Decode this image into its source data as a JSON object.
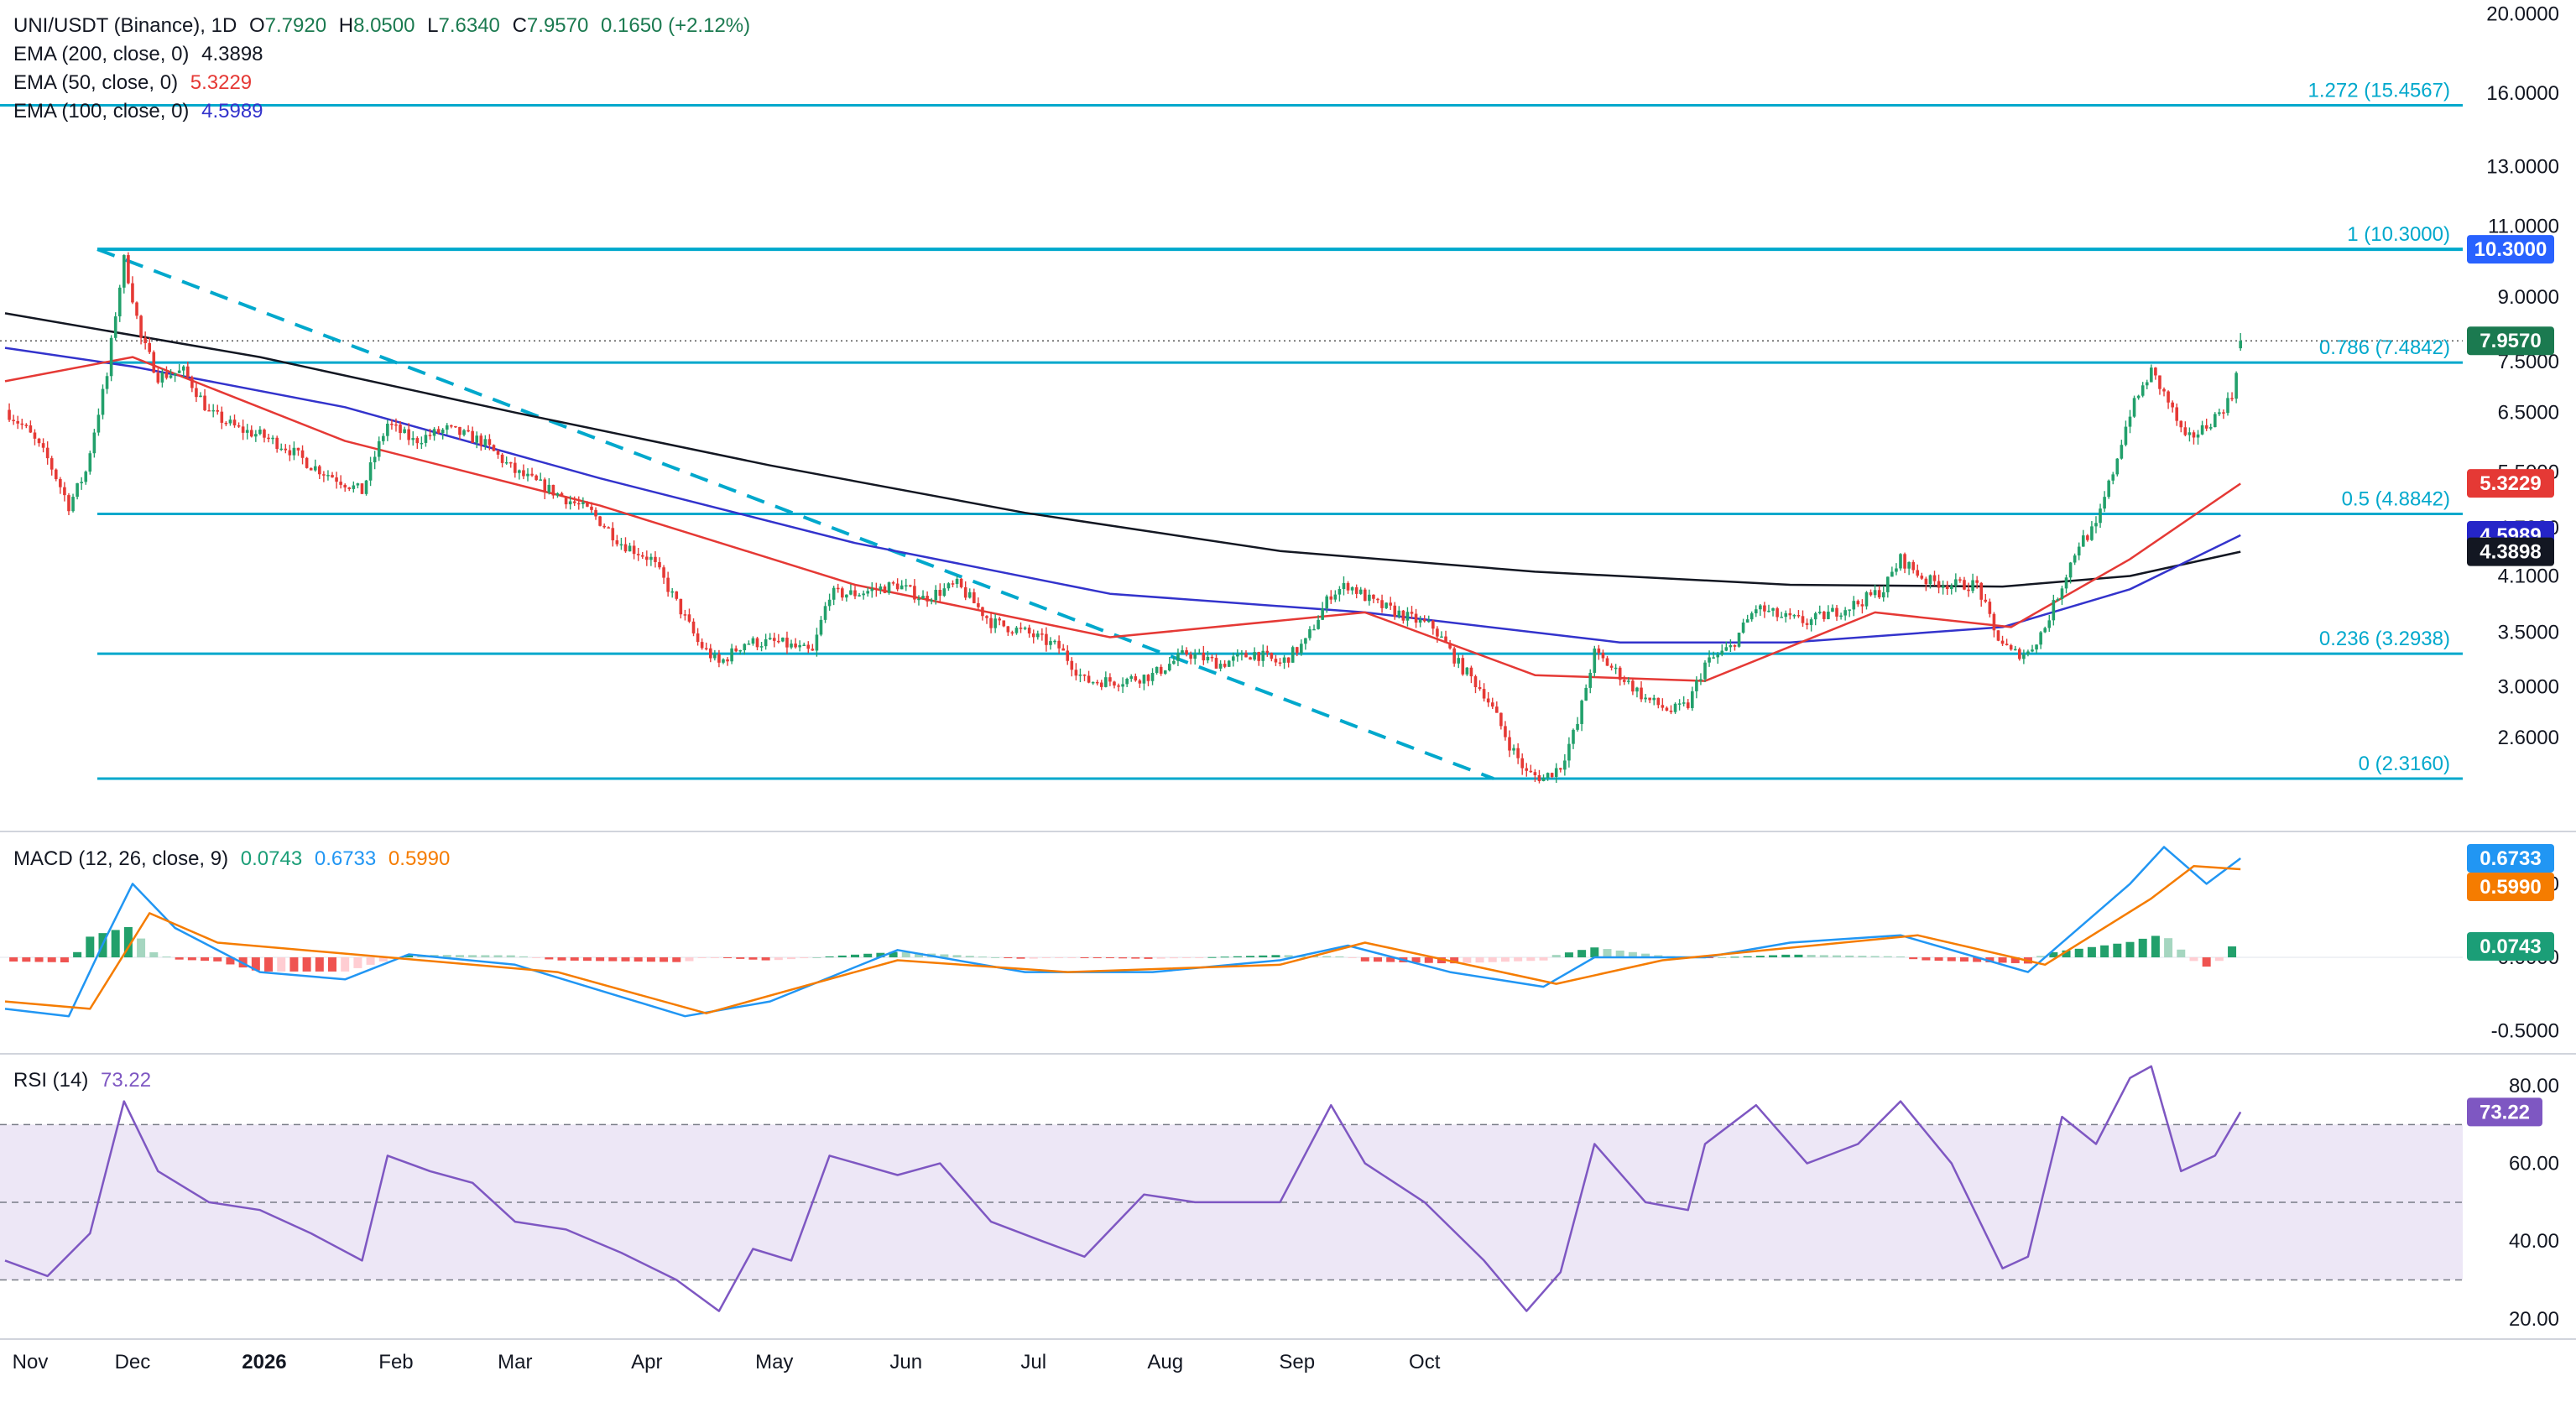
{
  "colors": {
    "up": "#22a06b",
    "down": "#e53935",
    "ema200": "#131722",
    "ema50": "#e53935",
    "ema100": "#3333cc",
    "fib": "#00a8cc",
    "macd": "#2196f3",
    "signal": "#f57c00",
    "rsi": "#7e57c2",
    "rsiBand": "#ede7f6"
  },
  "legend": {
    "symbol": "UNI/USDT (Binance), 1D",
    "o_label": "O",
    "o": "7.7920",
    "h_label": "H",
    "h": "8.0500",
    "l_label": "L",
    "l": "7.6340",
    "c_label": "C",
    "c": "7.9570",
    "chg": "0.1650 (+2.12%)",
    "ema200_label": "EMA (200, close, 0)",
    "ema200_val": "4.3898",
    "ema50_label": "EMA (50, close, 0)",
    "ema50_val": "5.3229",
    "ema100_label": "EMA (100, close, 0)",
    "ema100_val": "4.5989",
    "macd_label": "MACD (12, 26, close, 9)",
    "macd_hist": "0.0743",
    "macd_line": "0.6733",
    "macd_signal": "0.5990",
    "rsi_label": "RSI (14)",
    "rsi_val": "73.22"
  },
  "chart_data": {
    "type": "candlestick",
    "scale": "log",
    "price_axis_ticks": [
      "20.0000",
      "16.0000",
      "13.0000",
      "11.0000",
      "9.0000",
      "7.5000",
      "6.5000",
      "5.5000",
      "4.7000",
      "4.1000",
      "3.5000",
      "3.0000",
      "2.6000"
    ],
    "x_tick_labels": [
      "Nov",
      "Dec",
      "2026",
      "Feb",
      "Mar",
      "Apr",
      "May",
      "Jun",
      "Jul",
      "Aug",
      "Sep",
      "Oct"
    ],
    "fib_levels": [
      {
        "label": "1.272 (15.4567)",
        "value": 15.4567
      },
      {
        "label": "1 (10.3000)",
        "value": 10.3
      },
      {
        "label": "0.786 (7.4842)",
        "value": 7.4842
      },
      {
        "label": "0.5 (4.8842)",
        "value": 4.8842
      },
      {
        "label": "0.236 (3.2938)",
        "value": 3.2938
      },
      {
        "label": "0 (2.3160)",
        "value": 2.316
      }
    ],
    "trendline": {
      "from": {
        "date": "Nov 9",
        "value": 10.3
      },
      "to": {
        "date": "Jun 9",
        "value": 2.316
      }
    },
    "price_badges": [
      {
        "text": "10.3000",
        "value": 10.3,
        "color": "#2962ff"
      },
      {
        "text": "7.9570",
        "value": 7.957,
        "color": "#1b7a50"
      },
      {
        "text": "5.3229",
        "value": 5.3229,
        "color": "#e53935"
      },
      {
        "text": "4.5989",
        "value": 4.5989,
        "color": "#2525c8"
      },
      {
        "text": "4.3898",
        "value": 4.3898,
        "color": "#131722"
      }
    ],
    "price_path": [
      {
        "day": 0,
        "value": 6.55
      },
      {
        "day": 5,
        "value": 6.2
      },
      {
        "day": 10,
        "value": 5.7
      },
      {
        "day": 15,
        "value": 5.0
      },
      {
        "day": 19,
        "value": 5.5
      },
      {
        "day": 24,
        "value": 7.2
      },
      {
        "day": 28,
        "value": 10.0
      },
      {
        "day": 32,
        "value": 8.0
      },
      {
        "day": 36,
        "value": 7.2
      },
      {
        "day": 42,
        "value": 7.3
      },
      {
        "day": 48,
        "value": 6.5
      },
      {
        "day": 55,
        "value": 6.2
      },
      {
        "day": 60,
        "value": 6.1
      },
      {
        "day": 66,
        "value": 5.9
      },
      {
        "day": 72,
        "value": 5.6
      },
      {
        "day": 78,
        "value": 5.4
      },
      {
        "day": 84,
        "value": 5.2
      },
      {
        "day": 90,
        "value": 6.3
      },
      {
        "day": 96,
        "value": 6.0
      },
      {
        "day": 104,
        "value": 6.2
      },
      {
        "day": 112,
        "value": 6.0
      },
      {
        "day": 120,
        "value": 5.5
      },
      {
        "day": 126,
        "value": 5.3
      },
      {
        "day": 132,
        "value": 5.1
      },
      {
        "day": 138,
        "value": 4.9
      },
      {
        "day": 145,
        "value": 4.5
      },
      {
        "day": 152,
        "value": 4.3
      },
      {
        "day": 158,
        "value": 3.8
      },
      {
        "day": 163,
        "value": 3.4
      },
      {
        "day": 168,
        "value": 3.2
      },
      {
        "day": 174,
        "value": 3.4
      },
      {
        "day": 182,
        "value": 3.4
      },
      {
        "day": 190,
        "value": 3.3
      },
      {
        "day": 194,
        "value": 3.9
      },
      {
        "day": 200,
        "value": 3.9
      },
      {
        "day": 210,
        "value": 4.0
      },
      {
        "day": 216,
        "value": 3.85
      },
      {
        "day": 224,
        "value": 4.0
      },
      {
        "day": 232,
        "value": 3.6
      },
      {
        "day": 240,
        "value": 3.5
      },
      {
        "day": 248,
        "value": 3.35
      },
      {
        "day": 254,
        "value": 3.05
      },
      {
        "day": 262,
        "value": 3.05
      },
      {
        "day": 270,
        "value": 3.1
      },
      {
        "day": 278,
        "value": 3.3
      },
      {
        "day": 286,
        "value": 3.2
      },
      {
        "day": 294,
        "value": 3.3
      },
      {
        "day": 300,
        "value": 3.2
      },
      {
        "day": 306,
        "value": 3.4
      },
      {
        "day": 312,
        "value": 3.9
      },
      {
        "day": 316,
        "value": 4.0
      },
      {
        "day": 322,
        "value": 3.8
      },
      {
        "day": 330,
        "value": 3.65
      },
      {
        "day": 336,
        "value": 3.55
      },
      {
        "day": 342,
        "value": 3.2
      },
      {
        "day": 348,
        "value": 2.95
      },
      {
        "day": 354,
        "value": 2.55
      },
      {
        "day": 358,
        "value": 2.35
      },
      {
        "day": 362,
        "value": 2.32
      },
      {
        "day": 366,
        "value": 2.4
      },
      {
        "day": 370,
        "value": 2.7
      },
      {
        "day": 374,
        "value": 3.3
      },
      {
        "day": 380,
        "value": 3.1
      },
      {
        "day": 386,
        "value": 2.9
      },
      {
        "day": 392,
        "value": 2.8
      },
      {
        "day": 396,
        "value": 2.85
      },
      {
        "day": 400,
        "value": 3.2
      },
      {
        "day": 406,
        "value": 3.35
      },
      {
        "day": 412,
        "value": 3.75
      },
      {
        "day": 418,
        "value": 3.65
      },
      {
        "day": 424,
        "value": 3.6
      },
      {
        "day": 430,
        "value": 3.7
      },
      {
        "day": 436,
        "value": 3.8
      },
      {
        "day": 442,
        "value": 3.95
      },
      {
        "day": 446,
        "value": 4.3
      },
      {
        "day": 452,
        "value": 4.05
      },
      {
        "day": 458,
        "value": 4.0
      },
      {
        "day": 464,
        "value": 4.0
      },
      {
        "day": 468,
        "value": 3.5
      },
      {
        "day": 472,
        "value": 3.3
      },
      {
        "day": 476,
        "value": 3.3
      },
      {
        "day": 480,
        "value": 3.55
      },
      {
        "day": 484,
        "value": 4.0
      },
      {
        "day": 488,
        "value": 4.5
      },
      {
        "day": 492,
        "value": 4.7
      },
      {
        "day": 496,
        "value": 5.5
      },
      {
        "day": 500,
        "value": 6.5
      },
      {
        "day": 505,
        "value": 7.3
      },
      {
        "day": 509,
        "value": 6.7
      },
      {
        "day": 513,
        "value": 6.0
      },
      {
        "day": 517,
        "value": 6.2
      },
      {
        "day": 521,
        "value": 6.5
      },
      {
        "day": 524,
        "value": 6.8
      },
      {
        "day": 526,
        "value": 7.95
      }
    ],
    "ema200": [
      {
        "day": 0,
        "value": 8.6
      },
      {
        "day": 60,
        "value": 7.6
      },
      {
        "day": 120,
        "value": 6.5
      },
      {
        "day": 180,
        "value": 5.6
      },
      {
        "day": 240,
        "value": 4.9
      },
      {
        "day": 300,
        "value": 4.4
      },
      {
        "day": 360,
        "value": 4.15
      },
      {
        "day": 420,
        "value": 4.0
      },
      {
        "day": 470,
        "value": 3.98
      },
      {
        "day": 500,
        "value": 4.1
      },
      {
        "day": 526,
        "value": 4.39
      }
    ],
    "ema100": [
      {
        "day": 0,
        "value": 7.8
      },
      {
        "day": 30,
        "value": 7.4
      },
      {
        "day": 80,
        "value": 6.6
      },
      {
        "day": 140,
        "value": 5.4
      },
      {
        "day": 200,
        "value": 4.5
      },
      {
        "day": 260,
        "value": 3.9
      },
      {
        "day": 320,
        "value": 3.7
      },
      {
        "day": 380,
        "value": 3.4
      },
      {
        "day": 420,
        "value": 3.4
      },
      {
        "day": 470,
        "value": 3.55
      },
      {
        "day": 500,
        "value": 3.95
      },
      {
        "day": 526,
        "value": 4.6
      }
    ],
    "ema50": [
      {
        "day": 0,
        "value": 7.1
      },
      {
        "day": 30,
        "value": 7.6
      },
      {
        "day": 80,
        "value": 6.0
      },
      {
        "day": 140,
        "value": 5.0
      },
      {
        "day": 200,
        "value": 4.0
      },
      {
        "day": 260,
        "value": 3.45
      },
      {
        "day": 320,
        "value": 3.7
      },
      {
        "day": 360,
        "value": 3.1
      },
      {
        "day": 400,
        "value": 3.05
      },
      {
        "day": 440,
        "value": 3.7
      },
      {
        "day": 472,
        "value": 3.55
      },
      {
        "day": 500,
        "value": 4.3
      },
      {
        "day": 526,
        "value": 5.32
      }
    ],
    "macd": {
      "axis_ticks": [
        "0.5000",
        "0.0000",
        "-0.5000"
      ],
      "ylim": [
        -0.65,
        0.85
      ],
      "macd": [
        {
          "day": 0,
          "value": -0.35
        },
        {
          "day": 15,
          "value": -0.4
        },
        {
          "day": 24,
          "value": 0.15
        },
        {
          "day": 30,
          "value": 0.5
        },
        {
          "day": 40,
          "value": 0.2
        },
        {
          "day": 60,
          "value": -0.1
        },
        {
          "day": 80,
          "value": -0.15
        },
        {
          "day": 95,
          "value": 0.02
        },
        {
          "day": 120,
          "value": -0.05
        },
        {
          "day": 160,
          "value": -0.4
        },
        {
          "day": 180,
          "value": -0.3
        },
        {
          "day": 210,
          "value": 0.05
        },
        {
          "day": 240,
          "value": -0.1
        },
        {
          "day": 270,
          "value": -0.1
        },
        {
          "day": 300,
          "value": -0.02
        },
        {
          "day": 316,
          "value": 0.08
        },
        {
          "day": 340,
          "value": -0.1
        },
        {
          "day": 362,
          "value": -0.2
        },
        {
          "day": 374,
          "value": 0.0
        },
        {
          "day": 400,
          "value": 0.0
        },
        {
          "day": 420,
          "value": 0.1
        },
        {
          "day": 446,
          "value": 0.15
        },
        {
          "day": 476,
          "value": -0.1
        },
        {
          "day": 500,
          "value": 0.5
        },
        {
          "day": 508,
          "value": 0.75
        },
        {
          "day": 518,
          "value": 0.5
        },
        {
          "day": 526,
          "value": 0.6733
        }
      ],
      "signal": [
        {
          "day": 0,
          "value": -0.3
        },
        {
          "day": 20,
          "value": -0.35
        },
        {
          "day": 34,
          "value": 0.3
        },
        {
          "day": 50,
          "value": 0.1
        },
        {
          "day": 90,
          "value": 0.0
        },
        {
          "day": 130,
          "value": -0.1
        },
        {
          "day": 165,
          "value": -0.38
        },
        {
          "day": 210,
          "value": -0.02
        },
        {
          "day": 250,
          "value": -0.1
        },
        {
          "day": 300,
          "value": -0.05
        },
        {
          "day": 320,
          "value": 0.1
        },
        {
          "day": 365,
          "value": -0.18
        },
        {
          "day": 390,
          "value": -0.02
        },
        {
          "day": 450,
          "value": 0.15
        },
        {
          "day": 480,
          "value": -0.05
        },
        {
          "day": 505,
          "value": 0.4
        },
        {
          "day": 515,
          "value": 0.62
        },
        {
          "day": 526,
          "value": 0.599
        }
      ],
      "hist_last": 0.0743
    },
    "rsi": {
      "axis_ticks": [
        "80.00",
        "60.00",
        "40.00",
        "20.00"
      ],
      "ylim": [
        15,
        88
      ],
      "band": [
        30,
        70
      ],
      "mid": 50,
      "values": [
        {
          "day": 0,
          "value": 35
        },
        {
          "day": 10,
          "value": 31
        },
        {
          "day": 20,
          "value": 42
        },
        {
          "day": 28,
          "value": 76
        },
        {
          "day": 36,
          "value": 58
        },
        {
          "day": 48,
          "value": 50
        },
        {
          "day": 60,
          "value": 48
        },
        {
          "day": 72,
          "value": 42
        },
        {
          "day": 84,
          "value": 35
        },
        {
          "day": 90,
          "value": 62
        },
        {
          "day": 100,
          "value": 58
        },
        {
          "day": 110,
          "value": 55
        },
        {
          "day": 120,
          "value": 45
        },
        {
          "day": 132,
          "value": 43
        },
        {
          "day": 145,
          "value": 37
        },
        {
          "day": 158,
          "value": 30
        },
        {
          "day": 168,
          "value": 22
        },
        {
          "day": 176,
          "value": 38
        },
        {
          "day": 185,
          "value": 35
        },
        {
          "day": 194,
          "value": 62
        },
        {
          "day": 210,
          "value": 57
        },
        {
          "day": 220,
          "value": 60
        },
        {
          "day": 232,
          "value": 45
        },
        {
          "day": 244,
          "value": 40
        },
        {
          "day": 254,
          "value": 36
        },
        {
          "day": 268,
          "value": 52
        },
        {
          "day": 280,
          "value": 50
        },
        {
          "day": 300,
          "value": 50
        },
        {
          "day": 312,
          "value": 75
        },
        {
          "day": 320,
          "value": 60
        },
        {
          "day": 334,
          "value": 50
        },
        {
          "day": 348,
          "value": 35
        },
        {
          "day": 358,
          "value": 22
        },
        {
          "day": 366,
          "value": 32
        },
        {
          "day": 374,
          "value": 65
        },
        {
          "day": 386,
          "value": 50
        },
        {
          "day": 396,
          "value": 48
        },
        {
          "day": 400,
          "value": 65
        },
        {
          "day": 412,
          "value": 75
        },
        {
          "day": 424,
          "value": 60
        },
        {
          "day": 436,
          "value": 65
        },
        {
          "day": 446,
          "value": 76
        },
        {
          "day": 458,
          "value": 60
        },
        {
          "day": 470,
          "value": 33
        },
        {
          "day": 476,
          "value": 36
        },
        {
          "day": 484,
          "value": 72
        },
        {
          "day": 492,
          "value": 65
        },
        {
          "day": 500,
          "value": 82
        },
        {
          "day": 505,
          "value": 85
        },
        {
          "day": 512,
          "value": 58
        },
        {
          "day": 520,
          "value": 62
        },
        {
          "day": 526,
          "value": 73.22
        }
      ]
    }
  }
}
